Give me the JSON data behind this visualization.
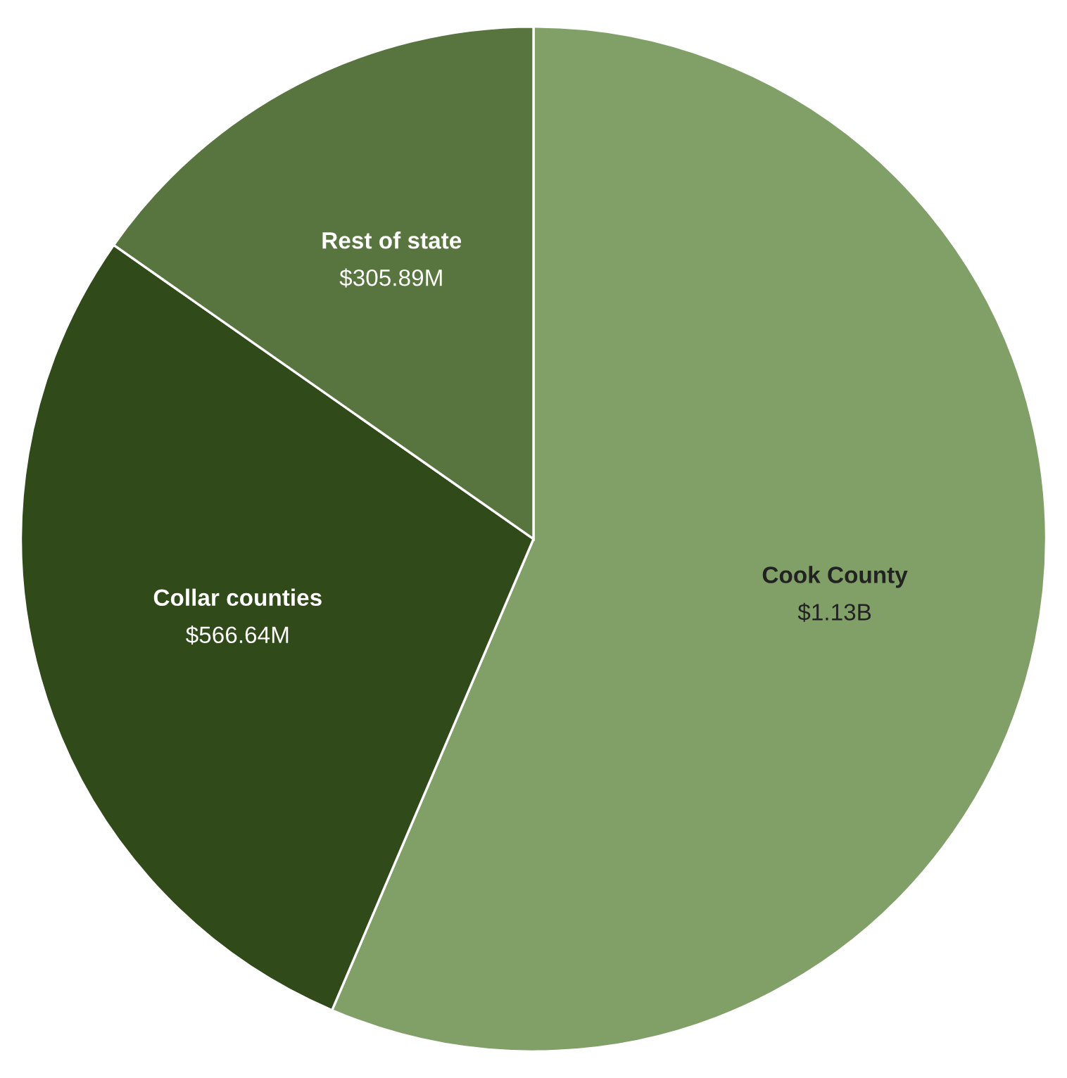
{
  "chart_data": {
    "type": "pie",
    "categories": [
      "Cook County",
      "Collar counties",
      "Rest of state"
    ],
    "values": [
      1130000000,
      566640000,
      305890000
    ],
    "colors": [
      "#80a068",
      "#304a1a",
      "#58753f"
    ],
    "value_labels": [
      "$1.13B",
      "$566.64M",
      "$305.89M"
    ]
  }
}
